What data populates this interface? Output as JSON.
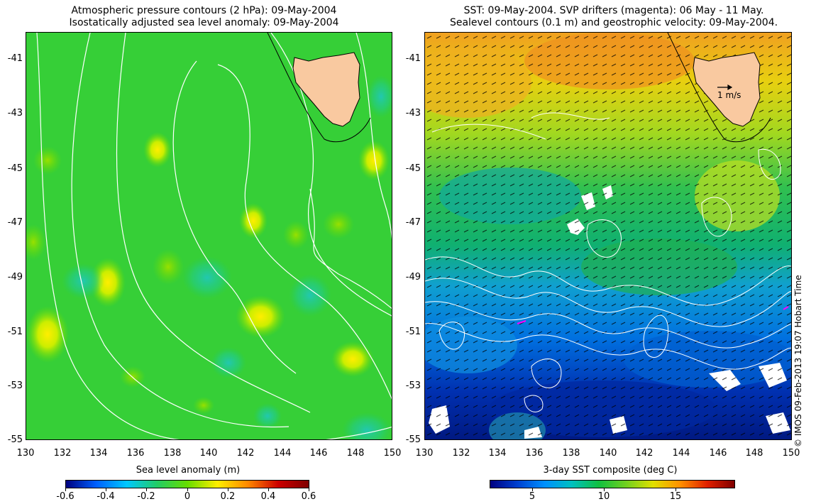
{
  "left_panel": {
    "title_line1": "Atmospheric pressure contours (2 hPa): 09-May-2004",
    "title_line2": "Isostatically adjusted sea level anomaly: 09-May-2004",
    "y_ticks": [
      "-41",
      "-43",
      "-45",
      "-47",
      "-49",
      "-51",
      "-53",
      "-55"
    ],
    "x_ticks": [
      "130",
      "132",
      "134",
      "136",
      "138",
      "140",
      "142",
      "144",
      "146",
      "148",
      "150"
    ],
    "colorbar_title": "Sea level anomaly (m)",
    "colorbar_ticks": [
      "-0.6",
      "-0.4",
      "-0.2",
      "0",
      "0.2",
      "0.4",
      "0.6"
    ]
  },
  "right_panel": {
    "title_line1": "SST: 09-May-2004. SVP drifters (magenta): 06 May - 11 May.",
    "title_line2": "Sealevel contours (0.1 m) and geostrophic velocity: 09-May-2004.",
    "y_ticks": [
      "-41",
      "-43",
      "-45",
      "-47",
      "-49",
      "-51",
      "-53",
      "-55"
    ],
    "x_ticks": [
      "130",
      "132",
      "134",
      "136",
      "138",
      "140",
      "142",
      "144",
      "146",
      "148",
      "150"
    ],
    "velocity_scale_label": "1 m/s",
    "colorbar_title": "3-day SST composite (deg C)",
    "colorbar_ticks": [
      "5",
      "10",
      "15"
    ]
  },
  "copyright": "© IMOS 09-Feb-2013 19:07 Hobart Time",
  "colors": {
    "land": "#f9c9a0",
    "sla_scale": [
      "#00007f",
      "#0060ff",
      "#00c8ff",
      "#22cc66",
      "#66dd00",
      "#ffee00",
      "#ff8800",
      "#cc0000",
      "#7f0000"
    ],
    "sst_scale": [
      "#000080",
      "#0040d0",
      "#0090ff",
      "#00c0c0",
      "#10c040",
      "#70d020",
      "#e0e000",
      "#ff9000",
      "#e02000",
      "#800000"
    ],
    "drifter": "#ff00ff"
  }
}
